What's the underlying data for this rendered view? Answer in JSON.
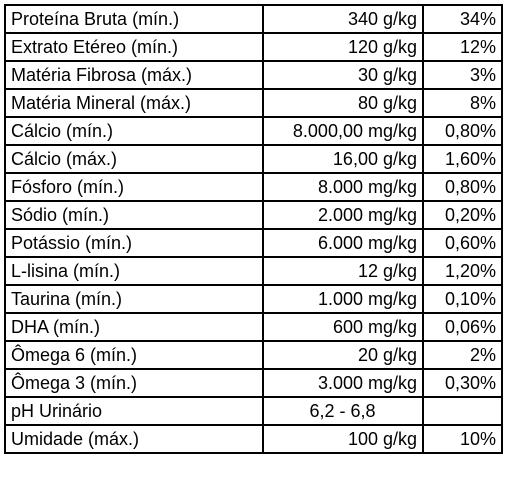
{
  "rows": [
    {
      "name": "Proteína Bruta (mín.)",
      "value": "340 g/kg",
      "percent": "34%"
    },
    {
      "name": "Extrato Etéreo (mín.)",
      "value": "120 g/kg",
      "percent": "12%"
    },
    {
      "name": "Matéria Fibrosa (máx.)",
      "value": "30 g/kg",
      "percent": "3%"
    },
    {
      "name": "Matéria Mineral (máx.)",
      "value": "80 g/kg",
      "percent": "8%"
    },
    {
      "name": "Cálcio (mín.)",
      "value": "8.000,00 mg/kg",
      "percent": "0,80%"
    },
    {
      "name": "Cálcio (máx.)",
      "value": "16,00 g/kg",
      "percent": "1,60%"
    },
    {
      "name": "Fósforo (mín.)",
      "value": "8.000 mg/kg",
      "percent": "0,80%"
    },
    {
      "name": "Sódio (mín.)",
      "value": "2.000 mg/kg",
      "percent": "0,20%"
    },
    {
      "name": "Potássio (mín.)",
      "value": "6.000 mg/kg",
      "percent": "0,60%"
    },
    {
      "name": "L-lisina (mín.)",
      "value": "12 g/kg",
      "percent": "1,20%"
    },
    {
      "name": "Taurina (mín.)",
      "value": "1.000 mg/kg",
      "percent": "0,10%"
    },
    {
      "name": "DHA (mín.)",
      "value": "600 mg/kg",
      "percent": "0,06%"
    },
    {
      "name": "Ômega 6 (mín.)",
      "value": "20 g/kg",
      "percent": "2%"
    },
    {
      "name": "Ômega 3 (mín.)",
      "value": "3.000 mg/kg",
      "percent": "0,30%"
    },
    {
      "name": "pH Urinário",
      "value": "6,2 - 6,8",
      "percent": ""
    },
    {
      "name": "Umidade (máx.)",
      "value": "100 g/kg",
      "percent": "10%"
    }
  ]
}
